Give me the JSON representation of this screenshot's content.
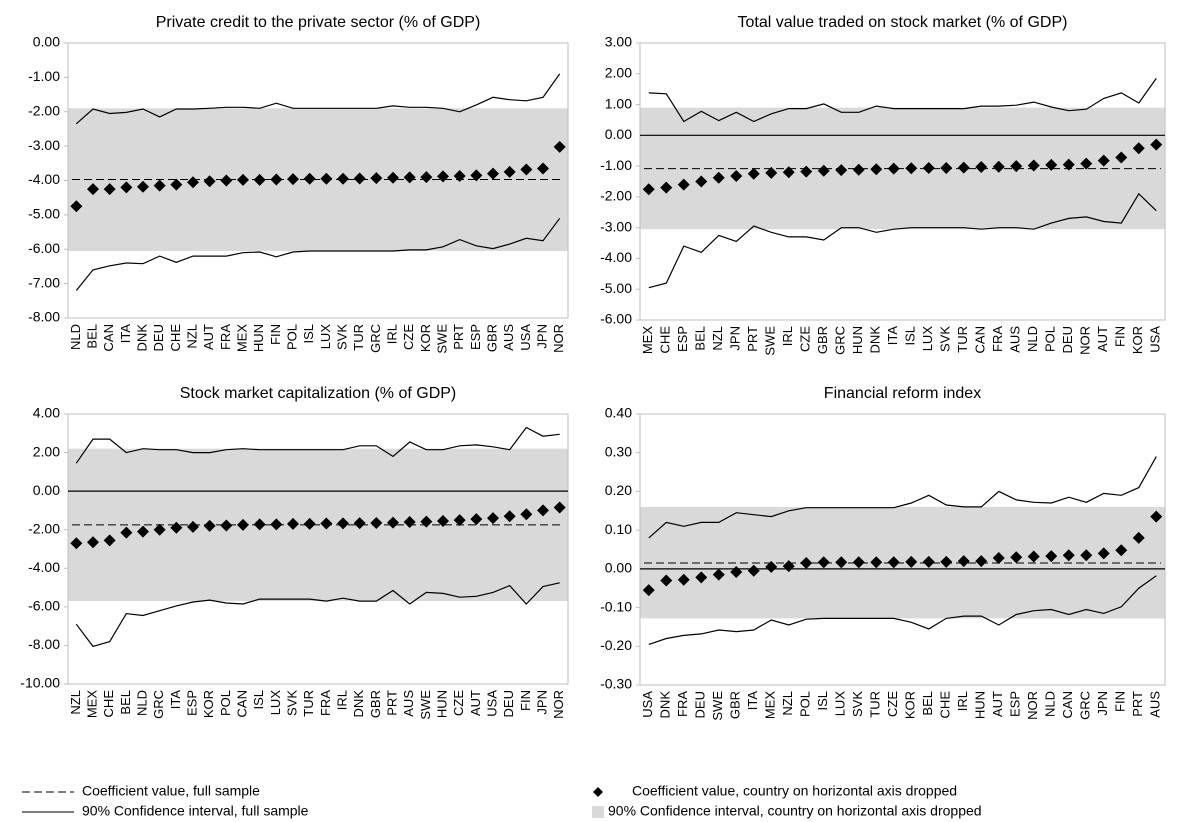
{
  "chart_data": [
    {
      "type": "line",
      "title": "Private credit to the private sector (% of GDP)",
      "categories": [
        "NLD",
        "BEL",
        "CAN",
        "ITA",
        "DNK",
        "DEU",
        "CHE",
        "NZL",
        "AUT",
        "FRA",
        "MEX",
        "HUN",
        "FIN",
        "POL",
        "ISL",
        "LUX",
        "SVK",
        "TUR",
        "GRC",
        "IRL",
        "CZE",
        "KOR",
        "SWE",
        "PRT",
        "ESP",
        "GBR",
        "AUS",
        "USA",
        "JPN",
        "NOR"
      ],
      "series": [
        {
          "style": "solid",
          "values": [
            -2.35,
            -1.92,
            -2.05,
            -2.02,
            -1.92,
            -2.15,
            -1.92,
            -1.92,
            -1.9,
            -1.87,
            -1.87,
            -1.9,
            -1.75,
            -1.9,
            -1.9,
            -1.9,
            -1.9,
            -1.9,
            -1.9,
            -1.83,
            -1.87,
            -1.87,
            -1.9,
            -2.0,
            -1.8,
            -1.58,
            -1.65,
            -1.68,
            -1.58,
            -0.9
          ]
        },
        {
          "style": "solid",
          "values": [
            -7.2,
            -6.6,
            -6.48,
            -6.4,
            -6.42,
            -6.2,
            -6.38,
            -6.2,
            -6.2,
            -6.2,
            -6.1,
            -6.08,
            -6.22,
            -6.08,
            -6.05,
            -6.05,
            -6.05,
            -6.05,
            -6.05,
            -6.05,
            -6.02,
            -6.02,
            -5.93,
            -5.72,
            -5.9,
            -5.98,
            -5.85,
            -5.68,
            -5.75,
            -5.1
          ]
        },
        {
          "style": "diamond",
          "values": [
            -4.75,
            -4.25,
            -4.25,
            -4.2,
            -4.18,
            -4.15,
            -4.12,
            -4.05,
            -4.02,
            -4.0,
            -3.98,
            -3.98,
            -3.97,
            -3.96,
            -3.95,
            -3.95,
            -3.95,
            -3.94,
            -3.93,
            -3.92,
            -3.91,
            -3.9,
            -3.88,
            -3.87,
            -3.85,
            -3.8,
            -3.75,
            -3.68,
            -3.65,
            -3.02
          ]
        }
      ],
      "full_sample_coef": -3.97,
      "band": [
        -6.05,
        -1.9
      ],
      "ylim": [
        -8,
        0
      ],
      "yticks": [
        {
          "value": 0,
          "label": "0.00"
        },
        {
          "value": -1,
          "label": "-1.00"
        },
        {
          "value": -2,
          "label": "-2.00"
        },
        {
          "value": -3,
          "label": "-3.00"
        },
        {
          "value": -4,
          "label": "-4.00"
        },
        {
          "value": -5,
          "label": "-5.00"
        },
        {
          "value": -6,
          "label": "-6.00"
        },
        {
          "value": -7,
          "label": "-7.00"
        },
        {
          "value": -8,
          "label": "-8.00"
        }
      ]
    },
    {
      "type": "line",
      "title": "Total value traded on stock market (% of GDP)",
      "categories": [
        "MEX",
        "CHE",
        "ESP",
        "BEL",
        "NZL",
        "JPN",
        "PRT",
        "SWE",
        "IRL",
        "CZE",
        "GBR",
        "GRC",
        "HUN",
        "DNK",
        "ITA",
        "ISL",
        "LUX",
        "SVK",
        "TUR",
        "CAN",
        "FRA",
        "AUS",
        "NLD",
        "POL",
        "DEU",
        "NOR",
        "AUT",
        "FIN",
        "KOR",
        "USA"
      ],
      "series": [
        {
          "style": "solid",
          "values": [
            1.38,
            1.35,
            0.45,
            0.78,
            0.48,
            0.75,
            0.45,
            0.7,
            0.87,
            0.87,
            1.02,
            0.75,
            0.75,
            0.95,
            0.87,
            0.87,
            0.87,
            0.87,
            0.87,
            0.95,
            0.95,
            0.98,
            1.08,
            0.92,
            0.8,
            0.85,
            1.2,
            1.38,
            1.05,
            1.85
          ]
        },
        {
          "style": "solid",
          "values": [
            -4.95,
            -4.8,
            -3.6,
            -3.8,
            -3.25,
            -3.45,
            -2.95,
            -3.15,
            -3.3,
            -3.3,
            -3.4,
            -3.0,
            -3.0,
            -3.15,
            -3.05,
            -3.0,
            -3.0,
            -3.0,
            -3.0,
            -3.05,
            -3.0,
            -3.0,
            -3.05,
            -2.85,
            -2.7,
            -2.65,
            -2.8,
            -2.85,
            -1.9,
            -2.45
          ]
        },
        {
          "style": "diamond",
          "values": [
            -1.75,
            -1.7,
            -1.6,
            -1.5,
            -1.38,
            -1.32,
            -1.25,
            -1.22,
            -1.2,
            -1.18,
            -1.15,
            -1.13,
            -1.12,
            -1.1,
            -1.08,
            -1.07,
            -1.06,
            -1.06,
            -1.05,
            -1.03,
            -1.02,
            -1.0,
            -0.98,
            -0.96,
            -0.95,
            -0.92,
            -0.82,
            -0.72,
            -0.42,
            -0.3
          ]
        }
      ],
      "full_sample_coef": -1.08,
      "band": [
        -3.05,
        0.9
      ],
      "ylim": [
        -6,
        3
      ],
      "yticks": [
        {
          "value": 3,
          "label": "3.00"
        },
        {
          "value": 2,
          "label": "2.00"
        },
        {
          "value": 1,
          "label": "1.00"
        },
        {
          "value": 0,
          "label": "0.00"
        },
        {
          "value": -1,
          "label": "-1.00"
        },
        {
          "value": -2,
          "label": "-2.00"
        },
        {
          "value": -3,
          "label": "-3.00"
        },
        {
          "value": -4,
          "label": "-4.00"
        },
        {
          "value": -5,
          "label": "-5.00"
        },
        {
          "value": -6,
          "label": "-6.00"
        }
      ]
    },
    {
      "type": "line",
      "title": "Stock market capitalization (% of GDP)",
      "categories": [
        "NZL",
        "MEX",
        "CHE",
        "BEL",
        "NLD",
        "GRC",
        "ITA",
        "ESP",
        "KOR",
        "POL",
        "CAN",
        "ISL",
        "LUX",
        "SVK",
        "TUR",
        "FRA",
        "IRL",
        "DNK",
        "GBR",
        "PRT",
        "AUS",
        "SWE",
        "HUN",
        "CZE",
        "AUT",
        "USA",
        "DEU",
        "FIN",
        "JPN",
        "NOR"
      ],
      "series": [
        {
          "style": "solid",
          "values": [
            1.45,
            2.7,
            2.7,
            2.0,
            2.2,
            2.15,
            2.15,
            2.0,
            2.0,
            2.15,
            2.2,
            2.15,
            2.15,
            2.15,
            2.15,
            2.15,
            2.15,
            2.35,
            2.35,
            1.8,
            2.55,
            2.15,
            2.15,
            2.35,
            2.4,
            2.3,
            2.15,
            3.3,
            2.85,
            2.95
          ]
        },
        {
          "style": "solid",
          "values": [
            -6.9,
            -8.05,
            -7.8,
            -6.35,
            -6.45,
            -6.2,
            -5.95,
            -5.75,
            -5.65,
            -5.8,
            -5.85,
            -5.6,
            -5.6,
            -5.6,
            -5.6,
            -5.7,
            -5.55,
            -5.7,
            -5.7,
            -5.15,
            -5.85,
            -5.25,
            -5.3,
            -5.5,
            -5.45,
            -5.25,
            -4.9,
            -5.85,
            -4.95,
            -4.75
          ]
        },
        {
          "style": "diamond",
          "values": [
            -2.7,
            -2.65,
            -2.55,
            -2.15,
            -2.1,
            -2.0,
            -1.9,
            -1.85,
            -1.8,
            -1.78,
            -1.75,
            -1.72,
            -1.72,
            -1.7,
            -1.7,
            -1.68,
            -1.67,
            -1.66,
            -1.65,
            -1.63,
            -1.6,
            -1.58,
            -1.55,
            -1.5,
            -1.45,
            -1.4,
            -1.3,
            -1.2,
            -1.0,
            -0.85
          ]
        }
      ],
      "full_sample_coef": -1.75,
      "band": [
        -5.7,
        2.2
      ],
      "ylim": [
        -10,
        4
      ],
      "yticks": [
        {
          "value": 4,
          "label": "4.00"
        },
        {
          "value": 2,
          "label": "2.00"
        },
        {
          "value": 0,
          "label": "0.00"
        },
        {
          "value": -2,
          "label": "-2.00"
        },
        {
          "value": -4,
          "label": "-4.00"
        },
        {
          "value": -6,
          "label": "-6.00"
        },
        {
          "value": -8,
          "label": "-8.00"
        },
        {
          "value": -10,
          "label": "-10.00"
        }
      ]
    },
    {
      "type": "line",
      "title": "Financial reform index",
      "categories": [
        "USA",
        "DNK",
        "FRA",
        "DEU",
        "SWE",
        "GBR",
        "ITA",
        "MEX",
        "NZL",
        "POL",
        "ISL",
        "LUX",
        "SVK",
        "TUR",
        "CZE",
        "KOR",
        "BEL",
        "CHE",
        "IRL",
        "HUN",
        "AUT",
        "ESP",
        "NOR",
        "NLD",
        "CAN",
        "GRC",
        "JPN",
        "FIN",
        "PRT",
        "AUS"
      ],
      "series": [
        {
          "style": "solid",
          "values": [
            0.08,
            0.12,
            0.11,
            0.12,
            0.12,
            0.145,
            0.14,
            0.135,
            0.15,
            0.158,
            0.158,
            0.158,
            0.158,
            0.158,
            0.158,
            0.17,
            0.19,
            0.165,
            0.16,
            0.16,
            0.2,
            0.178,
            0.172,
            0.17,
            0.185,
            0.172,
            0.195,
            0.19,
            0.21,
            0.29
          ]
        },
        {
          "style": "solid",
          "values": [
            -0.195,
            -0.18,
            -0.172,
            -0.168,
            -0.158,
            -0.162,
            -0.158,
            -0.132,
            -0.145,
            -0.13,
            -0.128,
            -0.128,
            -0.128,
            -0.128,
            -0.128,
            -0.138,
            -0.155,
            -0.128,
            -0.122,
            -0.122,
            -0.145,
            -0.118,
            -0.108,
            -0.105,
            -0.118,
            -0.105,
            -0.115,
            -0.098,
            -0.05,
            -0.018
          ]
        },
        {
          "style": "diamond",
          "values": [
            -0.055,
            -0.03,
            -0.028,
            -0.022,
            -0.015,
            -0.008,
            -0.005,
            0.005,
            0.007,
            0.015,
            0.017,
            0.017,
            0.017,
            0.017,
            0.017,
            0.018,
            0.018,
            0.018,
            0.02,
            0.02,
            0.028,
            0.03,
            0.032,
            0.033,
            0.035,
            0.035,
            0.04,
            0.048,
            0.08,
            0.135
          ]
        }
      ],
      "full_sample_coef": 0.015,
      "band": [
        -0.128,
        0.16
      ],
      "ylim": [
        -0.3,
        0.4
      ],
      "yticks": [
        {
          "value": 0.4,
          "label": "0.40"
        },
        {
          "value": 0.3,
          "label": "0.30"
        },
        {
          "value": 0.2,
          "label": "0.20"
        },
        {
          "value": 0.1,
          "label": "0.10"
        },
        {
          "value": 0,
          "label": "0.00"
        },
        {
          "value": -0.1,
          "label": "-0.10"
        },
        {
          "value": -0.2,
          "label": "-0.20"
        },
        {
          "value": -0.3,
          "label": "-0.30"
        }
      ]
    }
  ],
  "legend": [
    {
      "label": "Coefficient value, full sample",
      "style": "dashed"
    },
    {
      "label": "Coefficient value, country on horizontal axis dropped",
      "style": "diamond"
    },
    {
      "label": "90% Confidence interval, full sample",
      "style": "solid"
    },
    {
      "label": "90% Confidence interval, country on horizontal axis dropped",
      "style": "band"
    }
  ]
}
